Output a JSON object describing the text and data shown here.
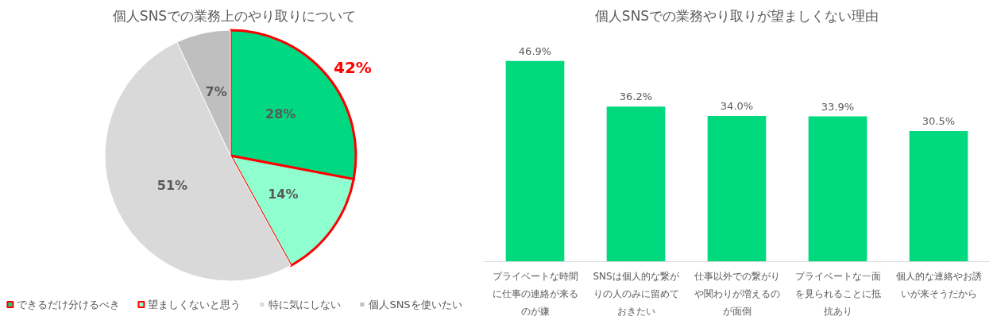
{
  "chart_data": [
    {
      "type": "pie",
      "title": "個人SNSでの業務上のやり取りについて",
      "categories": [
        "できるだけ分けるべき",
        "望ましくないと思う",
        "特に気にしない",
        "個人SNSを使いたい"
      ],
      "values": [
        28,
        14,
        51,
        7
      ],
      "value_labels": [
        "28%",
        "14%",
        "51%",
        "7%"
      ],
      "colors": [
        "#00d982",
        "#8fffd0",
        "#d9d9d9",
        "#bfbfbf"
      ],
      "legend": "bottom",
      "annotations": [
        "42%"
      ]
    },
    {
      "type": "bar",
      "title": "個人SNSでの業務やり取りが望ましくない理由",
      "categories": [
        "プライベートな時間に仕事の連絡が来るのが嫌",
        "SNSは個人的な繋がりの人のみに留めておきたい",
        "仕事以外での繋がりや関わりが増えるのが面倒",
        "プライベートな一面を見られることに抵抗あり",
        "個人的な連絡やお誘いが来そうだから"
      ],
      "values": [
        46.9,
        36.2,
        34.0,
        33.9,
        30.5
      ],
      "value_labels": [
        "46.9%",
        "36.2%",
        "34.0%",
        "33.9%",
        "30.5%"
      ],
      "color": "#00d97e"
    }
  ]
}
